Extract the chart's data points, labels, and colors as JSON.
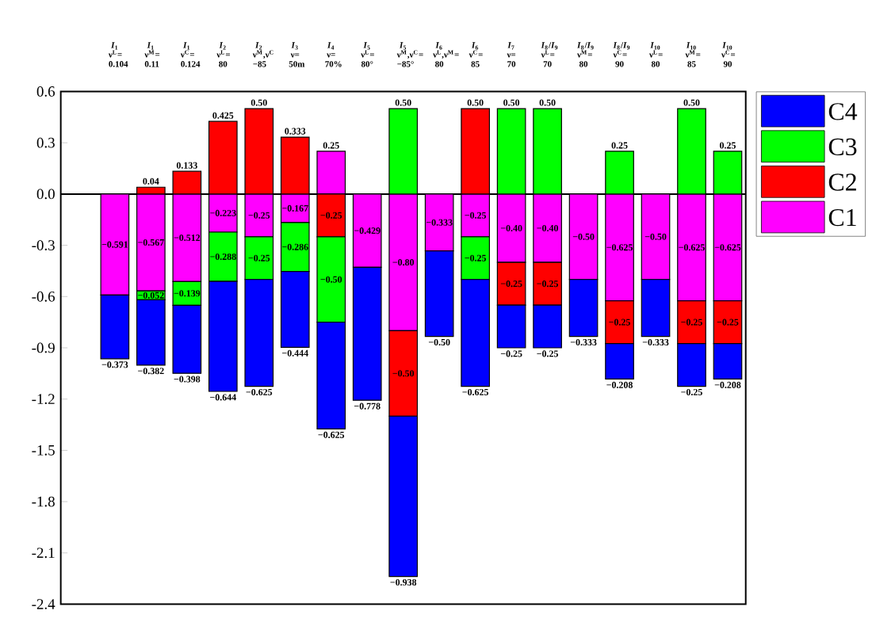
{
  "chart_data": {
    "type": "bar",
    "stacked": true,
    "categories": [
      "*I*$_{1}$ ν$^{L}$= 0.104",
      "*I*$_{1}$ ν$^{M}$= 0.11",
      "*I*$_{1}$ ν$^{C}$= 0.124",
      "*I*$_{2}$ ν$^{L}$= 80",
      "*I*$_{2}$ ν$^{M}$,ν$^{C}$ −85",
      "*I*$_{3}$ ν= 50m",
      "*I*$_{4}$ ν= 70%",
      "*I*$_{5}$ ν$^{L}$= 80°",
      "*I*$_{5}$ ν$^{M}$,ν$^{C}$= −85°",
      "*I*$_{6}$ ν$^{L}$,ν$^{M}$= 80",
      "*I*$_{6}$ ν$^{C}$= 85",
      "*I*$_{7}$ ν= 70",
      "*I*$_{8}$/*I*$_{9}$ ν$^{L}$= 70",
      "*I*$_{8}$/*I*$_{9}$ ν$^{M}$= 80",
      "*I*$_{8}$/*I*$_{9}$ ν$^{C}$= 90",
      "*I*$_{10}$ ν$^{L}$= 80",
      "*I*$_{10}$ ν$^{M}$= 85",
      "*I*$_{10}$ ν$^{C}$= 90"
    ],
    "series": [
      {
        "name": "C1",
        "color": "#ff00ff",
        "values": [
          -0.591,
          -0.567,
          -0.512,
          -0.223,
          -0.25,
          -0.167,
          0.25,
          -0.429,
          -0.8,
          -0.333,
          -0.25,
          -0.4,
          -0.4,
          -0.5,
          -0.625,
          -0.5,
          -0.625,
          -0.625
        ],
        "value_labels": [
          "−0.591",
          "−0.567",
          "−0.512",
          "−0.223",
          "−0.25",
          "−0.167",
          "0.25",
          "−0.429",
          "−0.80",
          "−0.333",
          "−0.25",
          "−0.40",
          "−0.40",
          "−0.50",
          "−0.625",
          "−0.50",
          "−0.625",
          "−0.625"
        ]
      },
      {
        "name": "C2",
        "color": "#ff0000",
        "values": [
          null,
          0.04,
          0.133,
          0.425,
          0.5,
          0.333,
          -0.25,
          null,
          -0.5,
          null,
          0.5,
          -0.25,
          -0.25,
          null,
          -0.25,
          null,
          -0.25,
          -0.25
        ],
        "value_labels": [
          null,
          "0.04",
          "0.133",
          "0.425",
          "0.50",
          "0.333",
          "−0.25",
          null,
          "−0.50",
          null,
          "0.50",
          "−0.25",
          "−0.25",
          null,
          "−0.25",
          null,
          "−0.25",
          "−0.25"
        ]
      },
      {
        "name": "C3",
        "color": "#00ff00",
        "values": [
          null,
          -0.052,
          -0.139,
          -0.288,
          -0.25,
          -0.286,
          -0.5,
          null,
          0.5,
          null,
          -0.25,
          0.5,
          0.5,
          null,
          0.25,
          null,
          0.5,
          0.25
        ],
        "value_labels": [
          null,
          "−0.052",
          "−0.139",
          "−0.288",
          "−0.25",
          "−0.286",
          "−0.50",
          null,
          "0.50",
          null,
          "−0.25",
          "0.50",
          "0.50",
          null,
          "0.25",
          null,
          "0.50",
          "0.25"
        ]
      },
      {
        "name": "C4",
        "color": "#0000ff",
        "values": [
          -0.373,
          -0.382,
          -0.398,
          -0.644,
          -0.625,
          -0.444,
          -0.625,
          -0.778,
          -0.938,
          -0.5,
          -0.625,
          -0.25,
          -0.25,
          -0.333,
          -0.208,
          -0.333,
          -0.25,
          -0.208
        ],
        "value_labels": [
          "−0.373",
          "−0.382",
          "−0.398",
          "−0.644",
          "−0.625",
          "−0.444",
          "−0.625",
          "−0.778",
          "−0.938",
          "−0.50",
          "−0.625",
          "−0.25",
          "−0.25",
          "−0.333",
          "−0.208",
          "−0.333",
          "−0.25",
          "−0.208"
        ]
      }
    ],
    "ylim": [
      -2.4,
      0.6
    ],
    "yticks": [
      -2.4,
      -2.1,
      -1.8,
      -1.5,
      -1.2,
      -0.9,
      -0.6,
      -0.3,
      {
        "value": 0,
        "label": "0.0"
      },
      0.3,
      0.6
    ],
    "ref_lines": [
      {
        "axis": "y",
        "value": 0
      }
    ],
    "legend": "right"
  }
}
